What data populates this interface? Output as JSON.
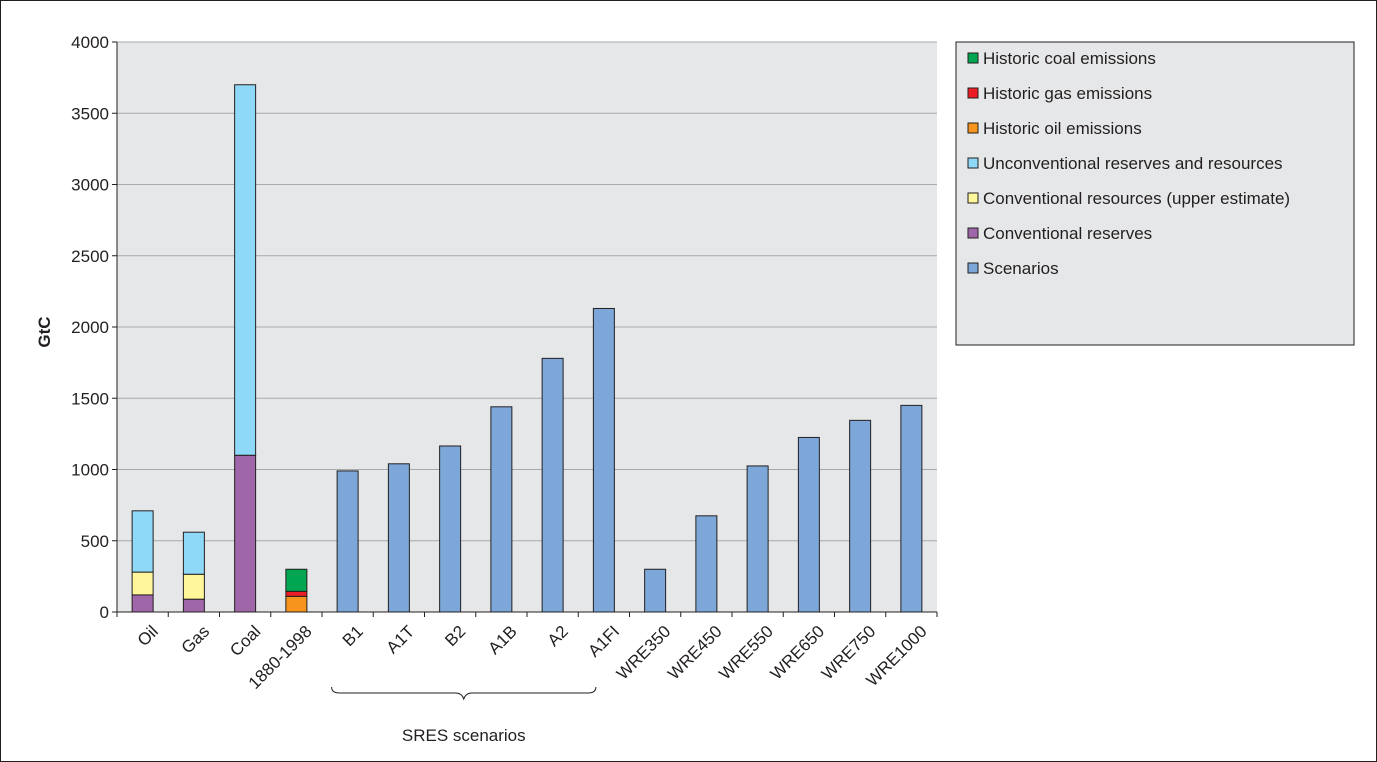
{
  "chart_data": {
    "type": "bar",
    "stacked": true,
    "ylabel": "GtC",
    "xlabel": "",
    "ylim": [
      0,
      4000
    ],
    "yticks": [
      0,
      500,
      1000,
      1500,
      2000,
      2500,
      3000,
      3500,
      4000
    ],
    "grid": true,
    "legend_position": "top-right",
    "categories": [
      "Oil",
      "Gas",
      "Coal",
      "1880-1998",
      "B1",
      "A1T",
      "B2",
      "A1B",
      "A2",
      "A1FI",
      "WRE350",
      "WRE450",
      "WRE550",
      "WRE650",
      "WRE750",
      "WRE1000"
    ],
    "series": [
      {
        "name": "Historic coal emissions",
        "color": "#00a651",
        "values": [
          0,
          0,
          0,
          155,
          0,
          0,
          0,
          0,
          0,
          0,
          0,
          0,
          0,
          0,
          0,
          0
        ]
      },
      {
        "name": "Historic gas emissions",
        "color": "#ed1c24",
        "values": [
          0,
          0,
          0,
          35,
          0,
          0,
          0,
          0,
          0,
          0,
          0,
          0,
          0,
          0,
          0,
          0
        ]
      },
      {
        "name": "Historic oil emissions",
        "color": "#f7941d",
        "values": [
          0,
          0,
          0,
          110,
          0,
          0,
          0,
          0,
          0,
          0,
          0,
          0,
          0,
          0,
          0,
          0
        ]
      },
      {
        "name": "Unconventional reserves and resources",
        "color": "#8ed8f8",
        "values": [
          430,
          295,
          2600,
          0,
          0,
          0,
          0,
          0,
          0,
          0,
          0,
          0,
          0,
          0,
          0,
          0
        ]
      },
      {
        "name": "Conventional resources (upper estimate)",
        "color": "#fff799",
        "values": [
          160,
          175,
          0,
          0,
          0,
          0,
          0,
          0,
          0,
          0,
          0,
          0,
          0,
          0,
          0,
          0
        ]
      },
      {
        "name": "Conventional reserves",
        "color": "#a066aa",
        "values": [
          120,
          90,
          1100,
          0,
          0,
          0,
          0,
          0,
          0,
          0,
          0,
          0,
          0,
          0,
          0,
          0
        ]
      },
      {
        "name": "Scenarios",
        "color": "#7da7d9",
        "values": [
          0,
          0,
          0,
          0,
          990,
          1040,
          1165,
          1440,
          1780,
          2130,
          300,
          675,
          1025,
          1225,
          1345,
          1450
        ]
      }
    ],
    "stack_order": [
      "Conventional reserves",
      "Conventional resources (upper estimate)",
      "Unconventional reserves and resources",
      "Historic oil emissions",
      "Historic gas emissions",
      "Historic coal emissions",
      "Scenarios"
    ],
    "annotations": [
      {
        "text": "SRES scenarios",
        "bracket_from": "B1",
        "bracket_to": "A1FI"
      }
    ],
    "colors": {
      "plot_background": "#e6e7e8",
      "gridline": "#a7a9ac",
      "bar_outline": "#231f20",
      "legend_background": "#e6e7e8"
    }
  }
}
